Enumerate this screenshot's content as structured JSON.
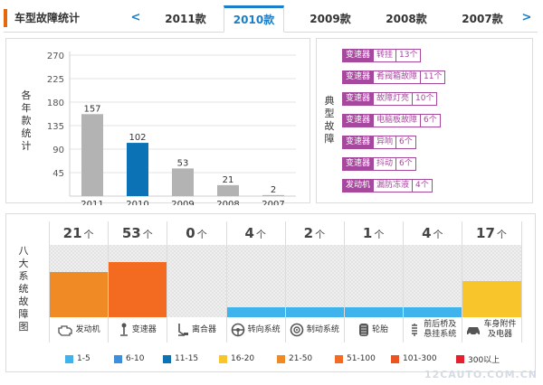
{
  "header": {
    "title": "车型故障统计",
    "prev_arrow": "<",
    "next_arrow": ">",
    "tabs": [
      {
        "label": "2011款",
        "active": false
      },
      {
        "label": "2010款",
        "active": true
      },
      {
        "label": "2009款",
        "active": false
      },
      {
        "label": "2008款",
        "active": false
      },
      {
        "label": "2007款",
        "active": false
      }
    ]
  },
  "year_panel": {
    "vertical_label": "各年款统计"
  },
  "chart_data": {
    "type": "bar",
    "categories": [
      "2011",
      "2010",
      "2009",
      "2008",
      "2007"
    ],
    "values": [
      157,
      102,
      53,
      21,
      2
    ],
    "highlight_category": "2010",
    "ylim": [
      0,
      270
    ],
    "yticks": [
      45,
      90,
      135,
      180,
      225,
      270
    ],
    "colors": {
      "default": "#b3b3b3",
      "highlight": "#0c72b6"
    },
    "grid": true
  },
  "faults_panel": {
    "vertical_label": "典型故障",
    "items": [
      {
        "category": "变速器",
        "name": "转挂",
        "count": "13个"
      },
      {
        "category": "变速器",
        "name": "肴阀箱故障",
        "count": "11个"
      },
      {
        "category": "变速器",
        "name": "故障灯亮",
        "count": "10个"
      },
      {
        "category": "变速器",
        "name": "电脑板故障",
        "count": "6个"
      },
      {
        "category": "变速器",
        "name": "异响",
        "count": "6个"
      },
      {
        "category": "变速器",
        "name": "抖动",
        "count": "6个"
      },
      {
        "category": "发动机",
        "name": "漏防冻液",
        "count": "4个"
      }
    ]
  },
  "systems_panel": {
    "vertical_label": "八大系统故障图",
    "unit": "个",
    "systems": [
      {
        "name": "发动机",
        "count": 21,
        "icon": "engine-icon",
        "color": "#f08a24",
        "fill": 0.63
      },
      {
        "name": "变速器",
        "count": 53,
        "icon": "gear-shift-icon",
        "color": "#f26b20",
        "fill": 0.76
      },
      {
        "name": "离合器",
        "count": 0,
        "icon": "clutch-pedal-icon",
        "color": "#efefef",
        "fill": 0
      },
      {
        "name": "转向系统",
        "count": 4,
        "icon": "steering-wheel-icon",
        "color": "#3eb3ec",
        "fill": 0.14
      },
      {
        "name": "制动系统",
        "count": 2,
        "icon": "brake-disc-icon",
        "color": "#3eb3ec",
        "fill": 0.14
      },
      {
        "name": "轮胎",
        "count": 1,
        "icon": "tire-icon",
        "color": "#3eb3ec",
        "fill": 0.14
      },
      {
        "name": "前后桥及\n悬挂系统",
        "count": 4,
        "icon": "suspension-icon",
        "color": "#3eb3ec",
        "fill": 0.14
      },
      {
        "name": "车身附件\n及电器",
        "count": 17,
        "icon": "car-body-icon",
        "color": "#f8c52b",
        "fill": 0.5
      }
    ]
  },
  "legend": [
    {
      "label": "1-5",
      "color": "#3eb3ec"
    },
    {
      "label": "6-10",
      "color": "#3d8fdc"
    },
    {
      "label": "11-15",
      "color": "#0c72b6"
    },
    {
      "label": "16-20",
      "color": "#f8c52b"
    },
    {
      "label": "21-50",
      "color": "#f08a24"
    },
    {
      "label": "51-100",
      "color": "#f26b20"
    },
    {
      "label": "101-300",
      "color": "#ec5320"
    },
    {
      "label": "300以上",
      "color": "#e5202e"
    }
  ],
  "watermark": "12CAUTO.COM.CN"
}
